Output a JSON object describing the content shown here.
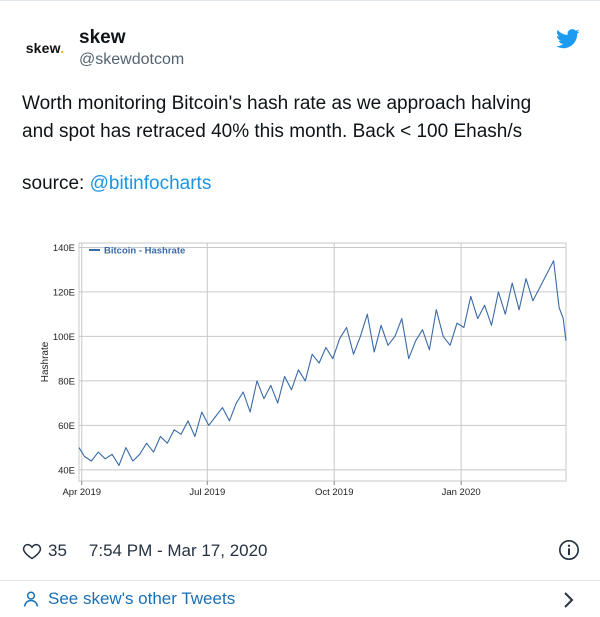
{
  "tweet": {
    "avatar_text": "skew",
    "avatar_dot": ".",
    "name": "skew",
    "handle": "@skewdotcom",
    "text_line1": "Worth monitoring Bitcoin's hash rate as we approach halving",
    "text_line2": "and spot has retraced 40% this month. Back < 100 Ehash/s",
    "source_prefix": "source: ",
    "source_mention": "@bitinfocharts",
    "likes": "35",
    "timestamp": "7:54 PM - Mar 17, 2020",
    "more_tweets": "See skew's other Tweets"
  },
  "icons": {
    "brand": "twitter-bird-icon",
    "like": "heart-icon",
    "info": "info-icon",
    "user": "person-icon",
    "nav": "chevron-right-icon"
  },
  "colors": {
    "twitter_blue": "#1d9bf0",
    "link_blue": "#1b95e0",
    "series_line": "#3a6aa8",
    "grid": "#c8c8c8"
  },
  "chart_data": {
    "type": "line",
    "legend": "Bitcoin - Hashrate",
    "legend_placement": "top-left",
    "ylabel": "Hashrate",
    "xlabel": "",
    "grid": true,
    "y_ticks": [
      "40E",
      "60E",
      "80E",
      "100E",
      "120E",
      "140E"
    ],
    "x_ticks": [
      "Apr 2019",
      "Jul 2019",
      "Oct 2019",
      "Jan 2020"
    ],
    "x_tick_dates": [
      "2019-04-01",
      "2019-07-01",
      "2019-10-01",
      "2020-01-01"
    ],
    "ylim": [
      35,
      142
    ],
    "xlim": [
      "2019-03-30",
      "2020-03-17"
    ],
    "series": [
      {
        "name": "Bitcoin - Hashrate",
        "unit": "Ehash/s",
        "x": [
          "2019-03-30",
          "2019-04-03",
          "2019-04-08",
          "2019-04-13",
          "2019-04-18",
          "2019-04-23",
          "2019-04-28",
          "2019-05-03",
          "2019-05-08",
          "2019-05-13",
          "2019-05-18",
          "2019-05-23",
          "2019-05-28",
          "2019-06-02",
          "2019-06-07",
          "2019-06-12",
          "2019-06-17",
          "2019-06-22",
          "2019-06-27",
          "2019-07-02",
          "2019-07-07",
          "2019-07-12",
          "2019-07-17",
          "2019-07-22",
          "2019-07-27",
          "2019-08-01",
          "2019-08-06",
          "2019-08-11",
          "2019-08-16",
          "2019-08-21",
          "2019-08-26",
          "2019-08-31",
          "2019-09-05",
          "2019-09-10",
          "2019-09-15",
          "2019-09-20",
          "2019-09-25",
          "2019-09-30",
          "2019-10-05",
          "2019-10-10",
          "2019-10-15",
          "2019-10-20",
          "2019-10-25",
          "2019-10-30",
          "2019-11-04",
          "2019-11-09",
          "2019-11-14",
          "2019-11-19",
          "2019-11-24",
          "2019-11-29",
          "2019-12-04",
          "2019-12-09",
          "2019-12-14",
          "2019-12-19",
          "2019-12-24",
          "2019-12-29",
          "2020-01-03",
          "2020-01-08",
          "2020-01-13",
          "2020-01-18",
          "2020-01-23",
          "2020-01-28",
          "2020-02-02",
          "2020-02-07",
          "2020-02-12",
          "2020-02-17",
          "2020-02-22",
          "2020-02-27",
          "2020-03-03",
          "2020-03-08",
          "2020-03-12",
          "2020-03-15",
          "2020-03-17"
        ],
        "values": [
          50,
          46,
          44,
          48,
          45,
          47,
          42,
          50,
          44,
          47,
          52,
          48,
          55,
          52,
          58,
          56,
          62,
          55,
          66,
          60,
          64,
          68,
          62,
          70,
          75,
          66,
          80,
          72,
          78,
          70,
          82,
          76,
          85,
          80,
          92,
          88,
          95,
          90,
          99,
          104,
          92,
          100,
          110,
          93,
          105,
          96,
          100,
          108,
          90,
          98,
          103,
          94,
          112,
          100,
          96,
          106,
          104,
          118,
          108,
          114,
          105,
          120,
          110,
          124,
          112,
          126,
          116,
          122,
          128,
          134,
          113,
          108,
          98
        ]
      }
    ]
  }
}
